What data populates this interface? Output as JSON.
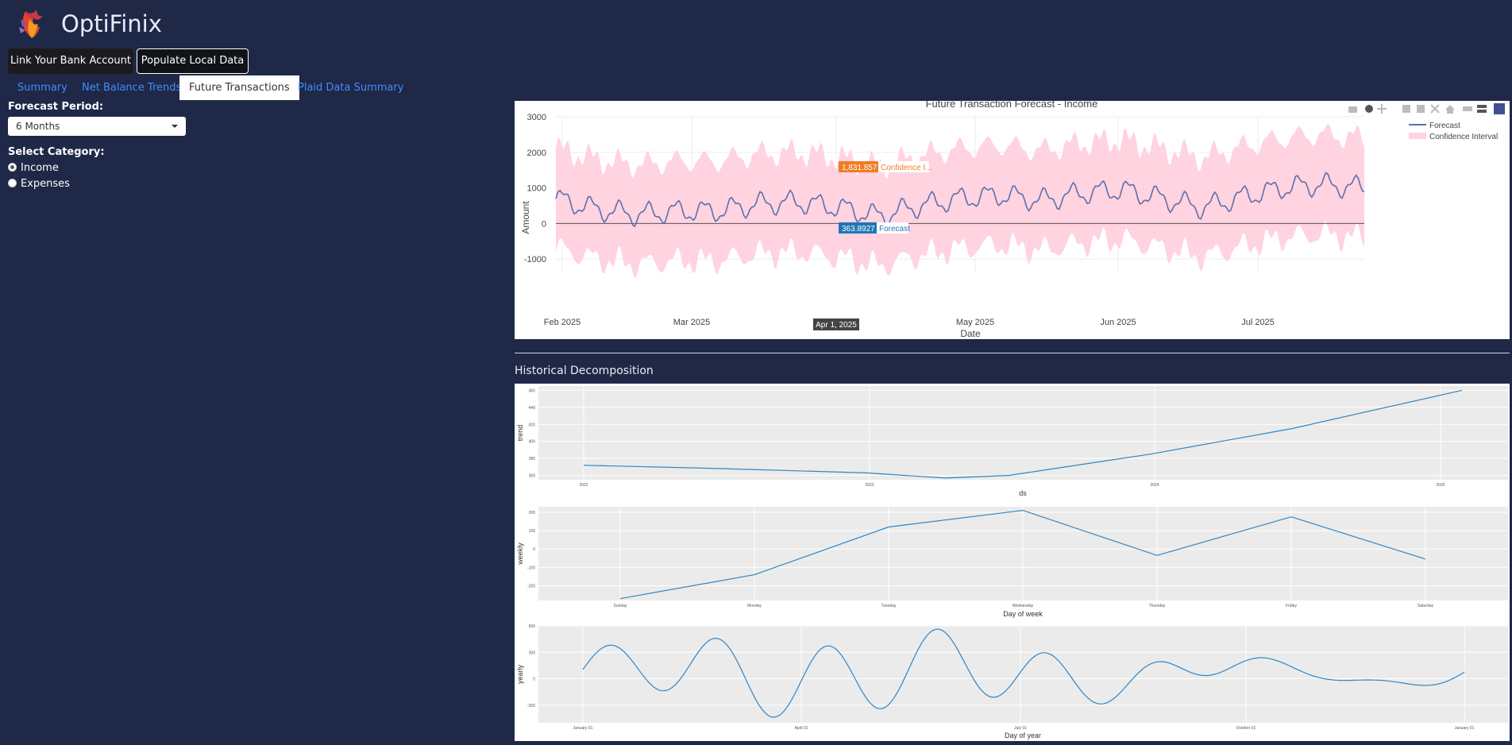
{
  "app": {
    "title": "OptiFinix"
  },
  "buttons": {
    "link_bank": "Link Your Bank Account",
    "populate": "Populate Local Data"
  },
  "tabs": [
    {
      "label": "Summary",
      "active": false
    },
    {
      "label": "Net Balance Trends",
      "active": false
    },
    {
      "label": "Future Transactions",
      "active": true
    },
    {
      "label": "Plaid Data Summary",
      "active": false
    }
  ],
  "controls": {
    "forecast_period_label": "Forecast Period:",
    "forecast_period_value": "6 Months",
    "category_label": "Select Category:",
    "categories": [
      {
        "label": "Income",
        "selected": true
      },
      {
        "label": "Expenses",
        "selected": false
      }
    ]
  },
  "colors": {
    "background": "#1f2847",
    "accent": "#3f8cff",
    "forecast_line": "#5b6fb0",
    "confidence_fill": "#ffd3df",
    "decomp_line": "#2f86c5",
    "tooltip_orange": "#ef7d22",
    "tooltip_blue": "#1f77b4"
  },
  "icons": [
    "camera-icon",
    "zoom-icon",
    "pan-icon",
    "zoom-in-icon",
    "zoom-out-icon",
    "autoscale-icon",
    "home-icon",
    "spike-lines-icon",
    "compare-icon",
    "plotly-logo-icon"
  ],
  "history_title": "Historical Decomposition",
  "chart_data": [
    {
      "type": "line",
      "title": "Future Transaction Forecast - Income",
      "xlabel": "Date",
      "ylabel": "Amount",
      "ylim": [
        -1400,
        3000
      ],
      "yticks": [
        3000,
        2000,
        1000,
        0,
        -1000
      ],
      "xticks": [
        "Feb 2025",
        "Mar 2025",
        "May 2025",
        "Jun 2025",
        "Jul 2025"
      ],
      "grid": true,
      "legend_position": "top-right",
      "series": [
        {
          "name": "Forecast"
        },
        {
          "name": "Confidence Interval"
        }
      ],
      "forecast_trend": [
        [
          0,
          700
        ],
        [
          20,
          400
        ],
        [
          40,
          250
        ],
        [
          60,
          350
        ],
        [
          80,
          350
        ],
        [
          100,
          550
        ],
        [
          120,
          600
        ],
        [
          140,
          450
        ],
        [
          160,
          200
        ],
        [
          180,
          500
        ],
        [
          200,
          700
        ],
        [
          220,
          800
        ],
        [
          240,
          650
        ],
        [
          260,
          850
        ],
        [
          280,
          950
        ],
        [
          300,
          700
        ],
        [
          320,
          450
        ],
        [
          340,
          750
        ],
        [
          360,
          1000
        ],
        [
          378,
          1100
        ],
        [
          400,
          1000
        ]
      ],
      "ci_halfwidth": 1400,
      "hover": {
        "date_label": "Apr 1, 2025",
        "upper_value": "1,831.857",
        "upper_label": "Confidence I...",
        "forecast_value": "363.8927",
        "forecast_label": "Forecast"
      }
    },
    {
      "type": "line",
      "ylabel": "trend",
      "xlabel": "ds",
      "xticks": [
        "2022",
        "2023",
        "2024",
        "2025"
      ],
      "yticks": [
        "460",
        "440",
        "420",
        "400",
        "380",
        "360"
      ],
      "ylim": [
        355,
        465
      ],
      "x": [
        0,
        1,
        2,
        2.55,
        3,
        4,
        5,
        6.2
      ],
      "y": [
        372,
        368,
        363,
        357,
        360,
        385,
        415,
        460
      ]
    },
    {
      "type": "line",
      "ylabel": "weekly",
      "xlabel": "Day of week",
      "categories": [
        "Sunday",
        "Monday",
        "Tuesday",
        "Wednesday",
        "Thursday",
        "Friday",
        "Saturday"
      ],
      "yticks": [
        "200",
        "100",
        "0",
        "-100",
        "-200"
      ],
      "ylim": [
        -280,
        230
      ],
      "values": [
        -270,
        -140,
        120,
        210,
        -35,
        175,
        -55
      ]
    },
    {
      "type": "line",
      "ylabel": "yearly",
      "xlabel": "Day of year",
      "xticks": [
        "January 01",
        "April 01",
        "July 01",
        "October 01",
        "January 01"
      ],
      "yticks": [
        "600",
        "300",
        "0",
        "-300"
      ],
      "ylim": [
        -500,
        600
      ]
    }
  ]
}
